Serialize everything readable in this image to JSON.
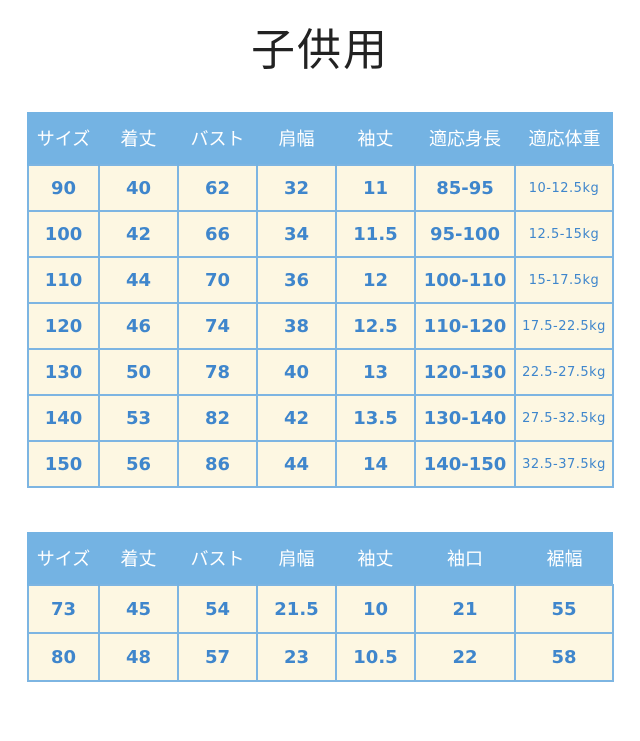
{
  "title": "子供用",
  "table1": {
    "header": [
      "サイズ",
      "着丈",
      "バスト",
      "肩幅",
      "袖丈",
      "適応身長",
      "適応体重"
    ],
    "rows": [
      [
        "90",
        "40",
        "62",
        "32",
        "11",
        "85-95",
        "10-12.5kg"
      ],
      [
        "100",
        "42",
        "66",
        "34",
        "11.5",
        "95-100",
        "12.5-15kg"
      ],
      [
        "110",
        "44",
        "70",
        "36",
        "12",
        "100-110",
        "15-17.5kg"
      ],
      [
        "120",
        "46",
        "74",
        "38",
        "12.5",
        "110-120",
        "17.5-22.5kg"
      ],
      [
        "130",
        "50",
        "78",
        "40",
        "13",
        "120-130",
        "22.5-27.5kg"
      ],
      [
        "140",
        "53",
        "82",
        "42",
        "13.5",
        "130-140",
        "27.5-32.5kg"
      ],
      [
        "150",
        "56",
        "86",
        "44",
        "14",
        "140-150",
        "32.5-37.5kg"
      ]
    ]
  },
  "table2": {
    "header": [
      "サイズ",
      "着丈",
      "バスト",
      "肩幅",
      "袖丈",
      "袖口",
      "裾幅"
    ],
    "rows": [
      [
        "73",
        "45",
        "54",
        "21.5",
        "10",
        "21",
        "55"
      ],
      [
        "80",
        "48",
        "57",
        "23",
        "10.5",
        "22",
        "58"
      ]
    ]
  }
}
